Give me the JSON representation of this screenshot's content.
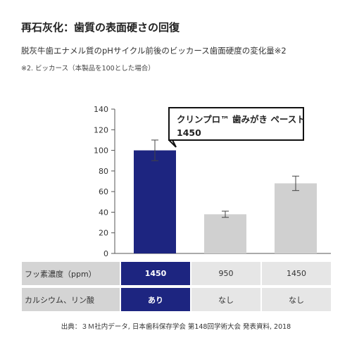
{
  "header": {
    "title": "再石灰化：歯質の表面硬さの回復",
    "subtitle": "脱灰牛歯エナメル質のpHサイクル前後のビッカース歯面硬度の変化量※2",
    "note": "※2. ビッカース（本製品を100とした場合）"
  },
  "callout": {
    "line1": "クリンプロ™ 歯みがき ペースト",
    "line2": "1450"
  },
  "chart_data": {
    "type": "bar",
    "categories": [
      "1450 / あり",
      "950 / なし",
      "1450 / なし"
    ],
    "values": [
      100,
      38,
      68
    ],
    "error": [
      10,
      3,
      7
    ],
    "yticks": [
      0,
      20,
      40,
      60,
      80,
      100,
      120,
      140
    ],
    "ylim": [
      0,
      140
    ],
    "bar_colors": [
      "#1d2580",
      "#d0d0d0",
      "#d0d0d0"
    ],
    "highlight_index": 0
  },
  "table": {
    "rows": [
      {
        "label": "フッ素濃度（ppm）",
        "values": [
          "1450",
          "950",
          "1450"
        ]
      },
      {
        "label": "カルシウム、リン酸",
        "values": [
          "あり",
          "なし",
          "なし"
        ]
      }
    ],
    "highlight_col": 0
  },
  "footer": {
    "source": "出典：３Ｍ社内データ, 日本歯科保存学会 第148回学術大会 発表資料, 2018"
  },
  "colors": {
    "accent": "#1d2580",
    "bar_gray": "#d0d0d0",
    "axis": "#555555"
  }
}
